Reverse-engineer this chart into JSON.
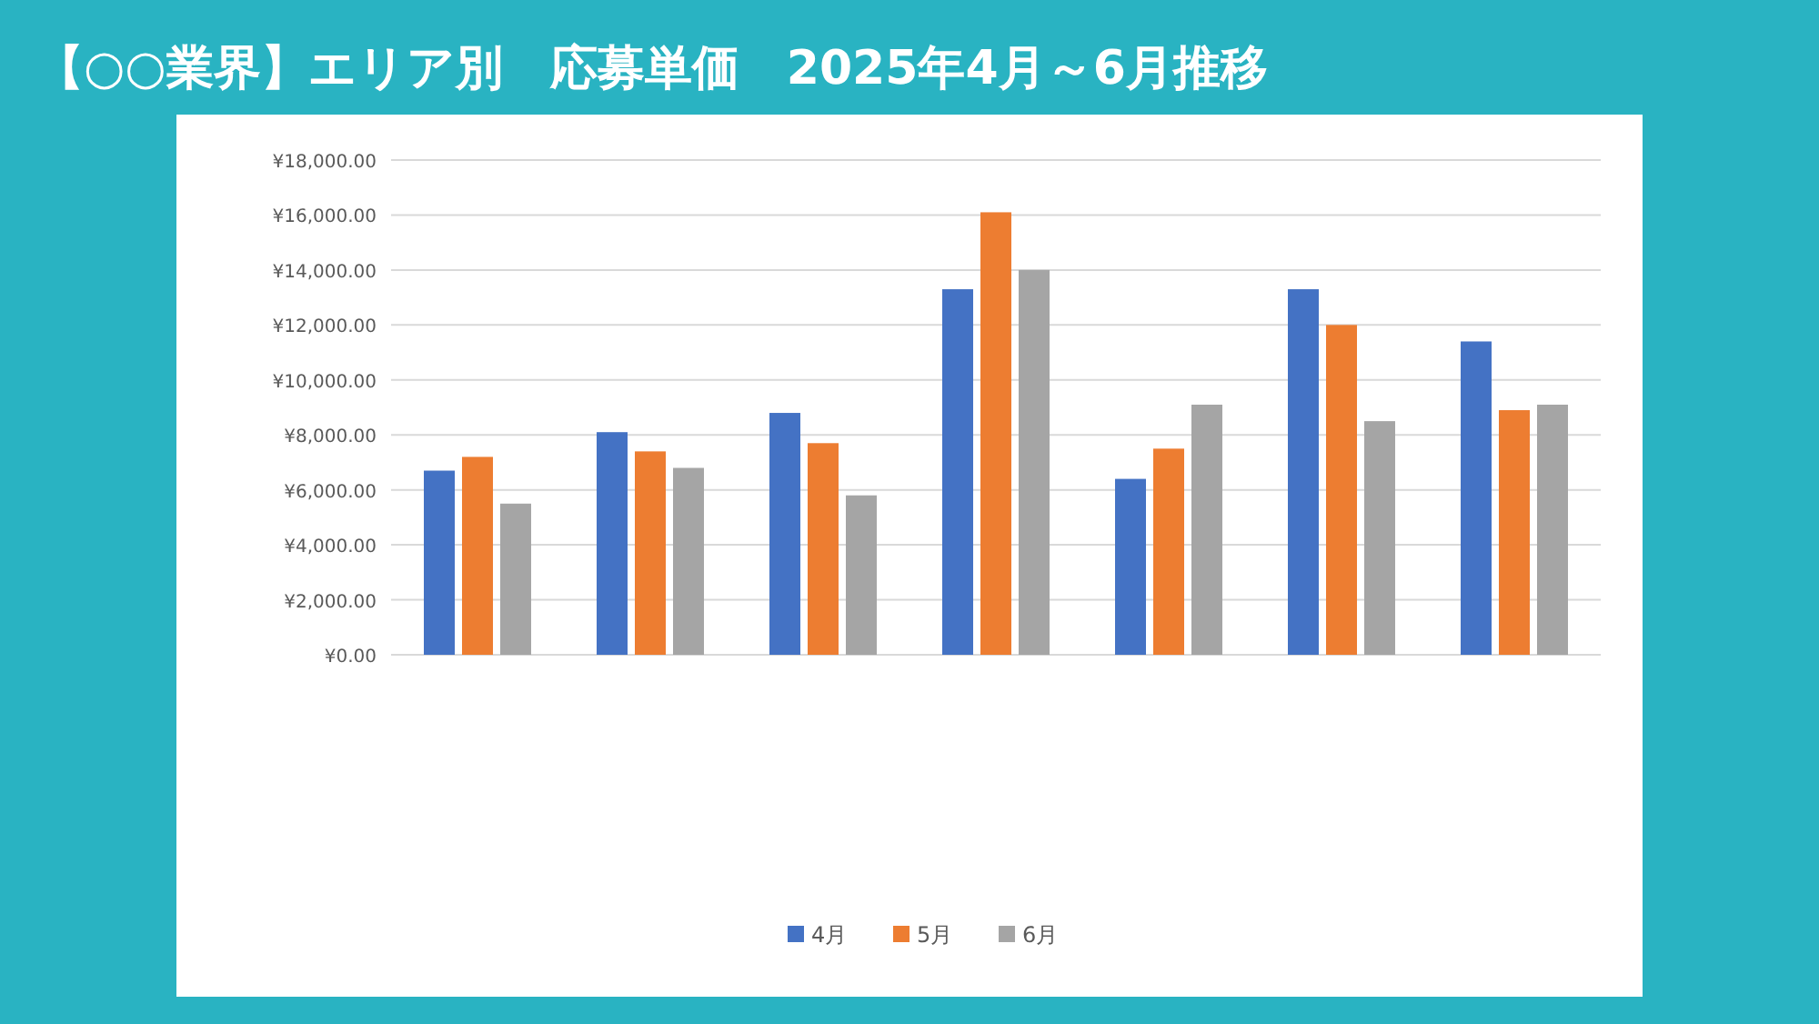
{
  "chart_data": {
    "type": "bar",
    "title": "【○○業界】エリア別　応募単価　2025年4月～6月推移",
    "categories": [
      null,
      null,
      null,
      null,
      null,
      null,
      null
    ],
    "series": [
      {
        "name": "4月",
        "color": "#4472c4",
        "values": [
          6700,
          8100,
          8800,
          13300,
          6400,
          13300,
          11400
        ]
      },
      {
        "name": "5月",
        "color": "#ed7d31",
        "values": [
          7200,
          7400,
          7700,
          16100,
          7500,
          12000,
          8900
        ]
      },
      {
        "name": "6月",
        "color": "#a5a5a5",
        "values": [
          5500,
          6800,
          5800,
          14000,
          9100,
          8500,
          9100
        ]
      }
    ],
    "ylim": [
      0,
      18000
    ],
    "yticks": [
      {
        "value": 0,
        "label": "¥0.00"
      },
      {
        "value": 2000,
        "label": "¥2,000.00"
      },
      {
        "value": 4000,
        "label": "¥4,000.00"
      },
      {
        "value": 6000,
        "label": "¥6,000.00"
      },
      {
        "value": 8000,
        "label": "¥8,000.00"
      },
      {
        "value": 10000,
        "label": "¥10,000.00"
      },
      {
        "value": 12000,
        "label": "¥12,000.00"
      },
      {
        "value": 14000,
        "label": "¥14,000.00"
      },
      {
        "value": 16000,
        "label": "¥16,000.00"
      },
      {
        "value": 18000,
        "label": "¥18,000.00"
      }
    ],
    "grid": "y",
    "legend": "bottom"
  }
}
